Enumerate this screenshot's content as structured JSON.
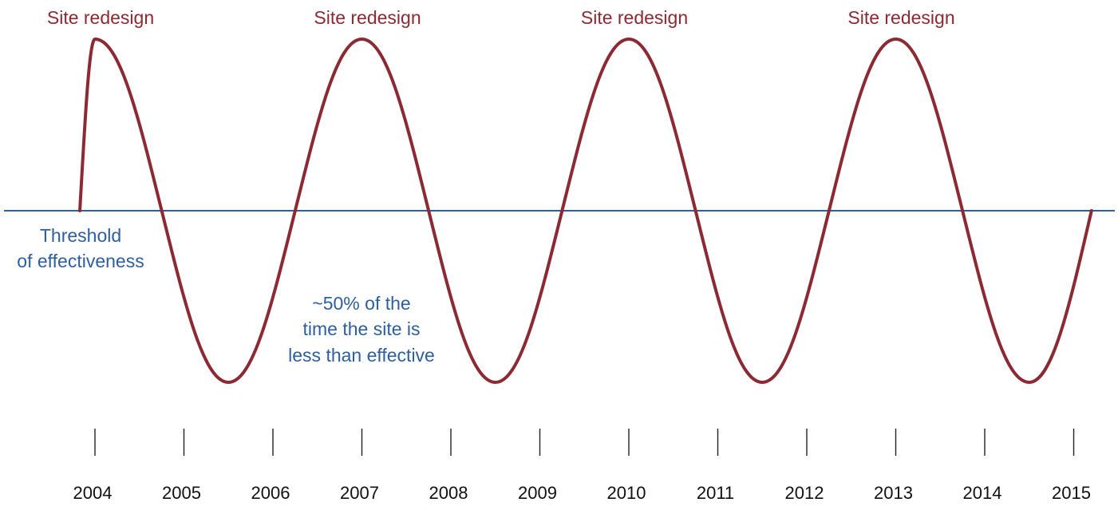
{
  "chart_data": {
    "type": "line",
    "x_ticks": [
      "2004",
      "2005",
      "2006",
      "2007",
      "2008",
      "2009",
      "2010",
      "2011",
      "2012",
      "2013",
      "2014",
      "2015"
    ],
    "series": [
      {
        "x": [
          2003.83,
          2004.0,
          2004.75,
          2005.5,
          2006.25,
          2007.0,
          2007.75,
          2008.5,
          2009.25,
          2010.0,
          2010.75,
          2011.5,
          2012.25,
          2013.0,
          2013.75,
          2014.5,
          2015.2
        ],
        "y": [
          0,
          1,
          0,
          -1,
          0,
          1,
          0,
          -1,
          0,
          1,
          0,
          -1,
          0,
          1,
          0,
          -1,
          0
        ],
        "color": "#8b2a32"
      }
    ],
    "threshold": {
      "y": 0,
      "color": "#2d5fa0",
      "label_lines": [
        "Threshold",
        "of effectiveness"
      ]
    },
    "peak_annotations": [
      {
        "x": 2004.0,
        "text": "Site redesign"
      },
      {
        "x": 2007.0,
        "text": "Site redesign"
      },
      {
        "x": 2010.0,
        "text": "Site redesign"
      },
      {
        "x": 2013.0,
        "text": "Site redesign"
      }
    ],
    "note_lines": [
      "~50% of the",
      "time the site is",
      "less than effective"
    ],
    "colors": {
      "curve": "#8b2a32",
      "threshold": "#2d5fa0",
      "annotation": "#8b2a32",
      "note": "#2d5fa0",
      "ticks": "#111111"
    }
  }
}
